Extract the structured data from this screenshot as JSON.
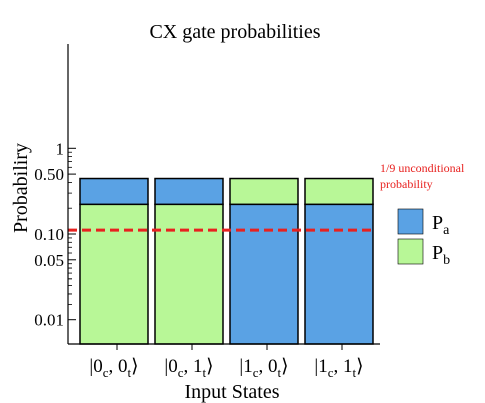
{
  "chart_data": {
    "type": "bar",
    "stacked": true,
    "title": "CX gate probabilities",
    "xlabel": "Input States",
    "ylabel": "Probabiliry",
    "y_scale": "log",
    "ylim": [
      0.005,
      1.5
    ],
    "y_ticks": [
      {
        "value": 1,
        "label": "1"
      },
      {
        "value": 0.5,
        "label": "0.50"
      },
      {
        "value": 0.1,
        "label": "0.10"
      },
      {
        "value": 0.05,
        "label": "0.05"
      },
      {
        "value": 0.01,
        "label": "0.01"
      }
    ],
    "categories": [
      {
        "c": "0",
        "t": "0"
      },
      {
        "c": "0",
        "t": "1"
      },
      {
        "c": "1",
        "t": "0"
      },
      {
        "c": "1",
        "t": "1"
      }
    ],
    "series": [
      {
        "name": "a",
        "label_main": "P",
        "label_sub": "a",
        "color": "#5aa2e4",
        "values": [
          0.222,
          0.222,
          0.222,
          0.222
        ]
      },
      {
        "name": "b",
        "label_main": "P",
        "label_sub": "b",
        "color": "#b8f797",
        "values": [
          0.222,
          0.222,
          0.222,
          0.222
        ]
      }
    ],
    "stack_order": [
      [
        "b",
        "a"
      ],
      [
        "b",
        "a"
      ],
      [
        "a",
        "b"
      ],
      [
        "a",
        "b"
      ]
    ],
    "reference_line": {
      "value": 0.1111,
      "color": "#e8211f",
      "style": "dashed",
      "label_line1": "1/9 unconditional",
      "label_line2": "probability"
    },
    "legend_placement": "right",
    "grid": false
  }
}
